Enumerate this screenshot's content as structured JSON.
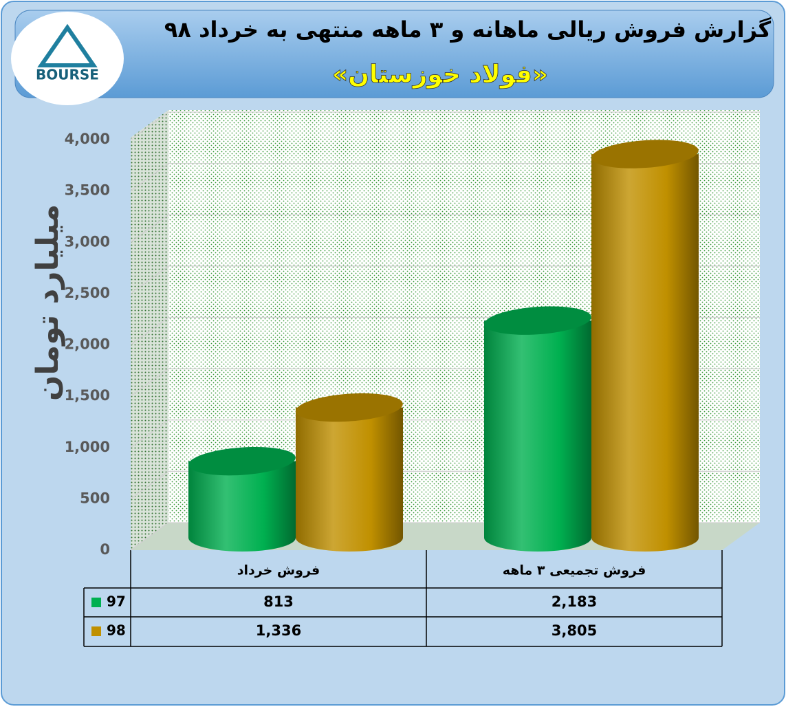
{
  "logo": {
    "text": "BOURSE"
  },
  "chart_data": {
    "type": "bar3d",
    "title": "گزارش فروش ریالی ماهانه و ۳ ماهه منتهی به خرداد ۹۸",
    "subtitle": "«فولاد خوزستان»",
    "y_label": "میلیارد تومان",
    "categories": [
      "فروش خرداد",
      "فروش تجمیعی ۳ ماهه"
    ],
    "series": [
      {
        "name": "97",
        "color": "#00b050",
        "values": [
          813,
          2183
        ],
        "value_labels": [
          "813",
          "2,183"
        ]
      },
      {
        "name": "98",
        "color": "#c09000",
        "values": [
          1336,
          3805
        ],
        "value_labels": [
          "1,336",
          "3,805"
        ]
      }
    ],
    "ylim": [
      0,
      4000
    ],
    "yticks": [
      0,
      500,
      {
        "value": 1000,
        "label": "1,000"
      },
      {
        "value": 1500,
        "label": "1,500"
      },
      {
        "value": 2000,
        "label": "2,000"
      },
      {
        "value": 2500,
        "label": "2,500"
      },
      {
        "value": 3000,
        "label": "3,000"
      },
      {
        "value": 3500,
        "label": "3,500"
      },
      {
        "value": 4000,
        "label": "4,000"
      }
    ],
    "grid": true
  }
}
